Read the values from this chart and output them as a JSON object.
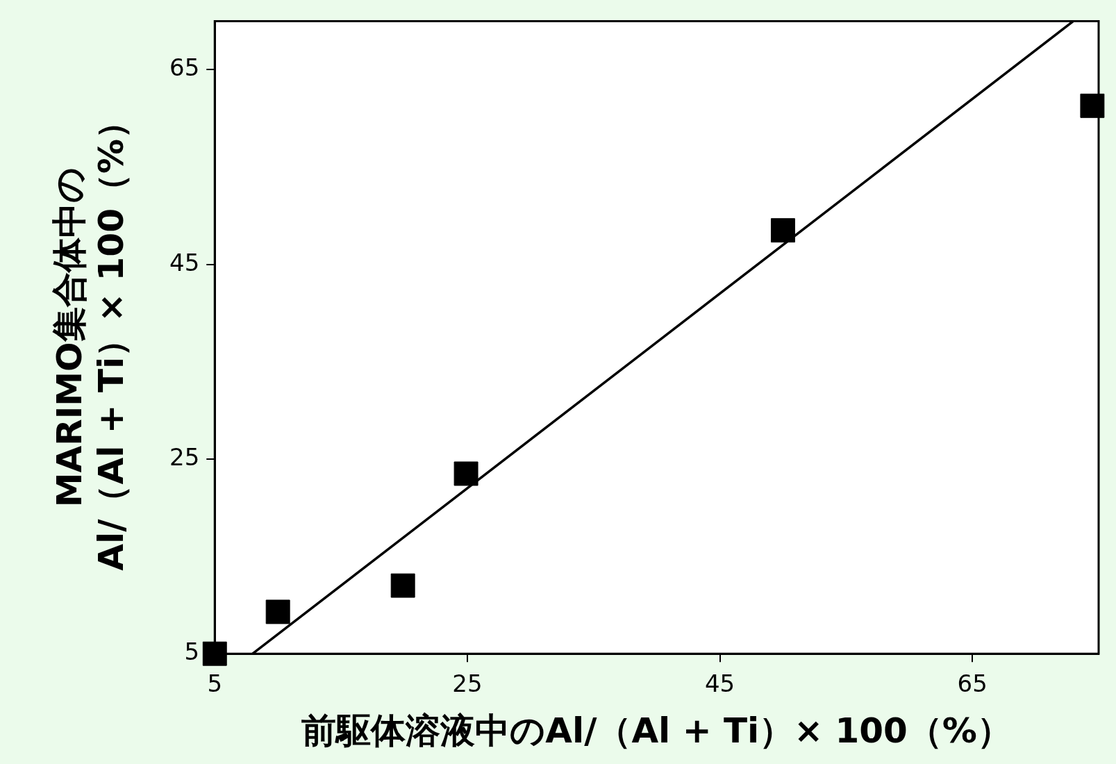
{
  "chart_data": {
    "type": "scatter",
    "xlabel": "前駆体溶液中のAl/（Al + Ti）× 100（%）",
    "ylabel": "MARIMO集合体中の\nAl/（Al + Ti）× 100（%）",
    "xlim": [
      5,
      75
    ],
    "xticks": [
      5,
      25,
      45,
      65
    ],
    "ylim": [
      5,
      70
    ],
    "yticks": [
      5,
      25,
      45,
      65
    ],
    "grid": false,
    "legend": false,
    "marker": "square",
    "series": [
      {
        "color": "#000000",
        "x": [
          5,
          10,
          19.9,
          24.9,
          50,
          74.5
        ],
        "values": [
          5,
          9.3,
          12,
          23.5,
          48.5,
          61.3
        ]
      },
      {
        "type": "line",
        "color": "#000000",
        "marker": "none",
        "line_style": "solid",
        "x": [
          8,
          73
        ],
        "values": [
          5,
          70
        ]
      }
    ]
  }
}
